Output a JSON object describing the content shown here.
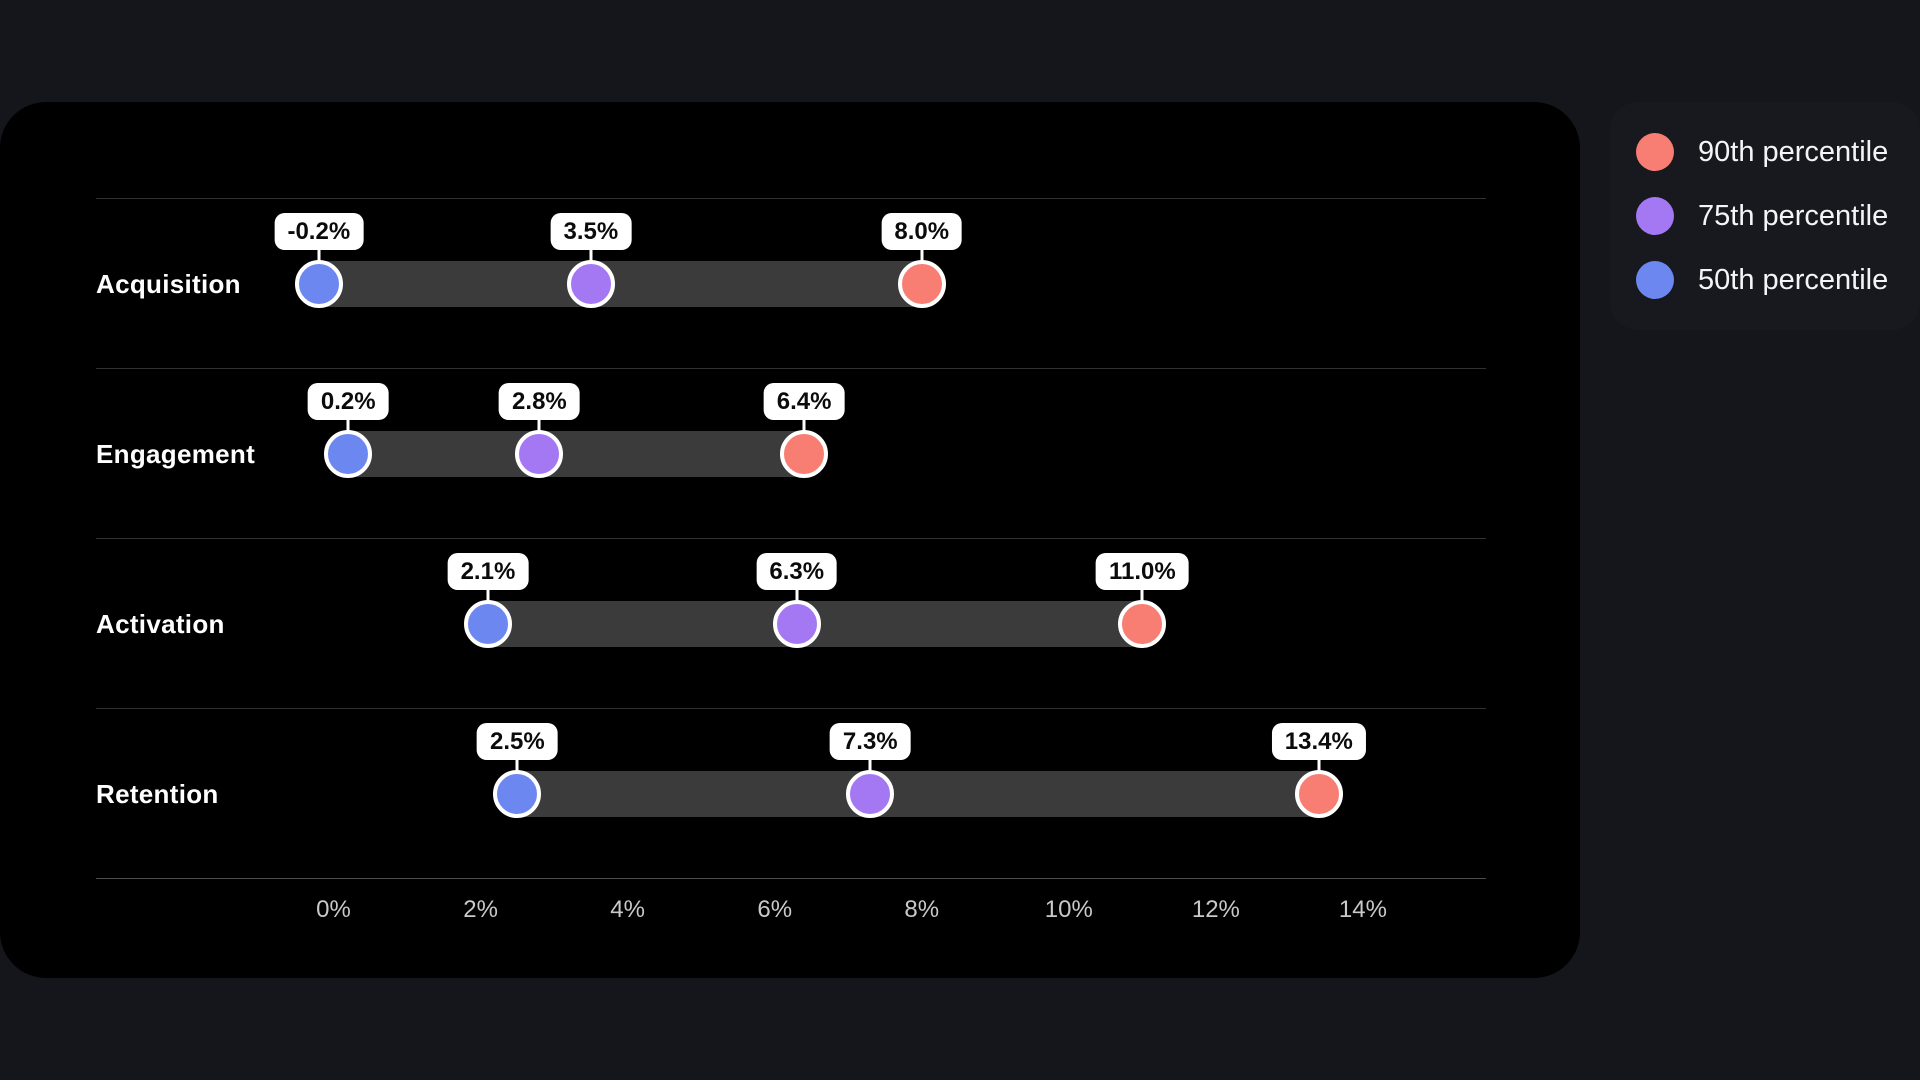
{
  "colors": {
    "page_bg": "#14161b",
    "panel_bg": "#000000",
    "legend_bg": "#17191e",
    "bar": "#3b3b3b",
    "row_line": "#2f3133",
    "axis_line": "#4b4d50",
    "tick_text": "#c9c9cb",
    "p50": "#6d87f0",
    "p75": "#a478f2",
    "p90": "#f87d72",
    "dot_ring": "#ffffff",
    "value_label_bg": "#ffffff",
    "value_label_text": "#0b0b0b"
  },
  "legend": {
    "items": [
      {
        "id": "p90",
        "label": "90th percentile",
        "color": "#f87d72"
      },
      {
        "id": "p75",
        "label": "75th percentile",
        "color": "#a478f2"
      },
      {
        "id": "p50",
        "label": "50th percentile",
        "color": "#6d87f0"
      }
    ]
  },
  "chart_data": {
    "type": "dumbbell-dot-range",
    "orientation": "horizontal",
    "categories": [
      "Acquisition",
      "Engagement",
      "Activation",
      "Retention"
    ],
    "series": [
      {
        "name": "50th percentile",
        "color": "#6d87f0",
        "values": [
          -0.2,
          0.2,
          2.1,
          2.5
        ]
      },
      {
        "name": "75th percentile",
        "color": "#a478f2",
        "values": [
          3.5,
          2.8,
          6.3,
          7.3
        ]
      },
      {
        "name": "90th percentile",
        "color": "#f87d72",
        "values": [
          8.0,
          6.4,
          11.0,
          13.4
        ]
      }
    ],
    "value_labels": [
      [
        "-0.2%",
        "3.5%",
        "8.0%"
      ],
      [
        "0.2%",
        "2.8%",
        "6.4%"
      ],
      [
        "2.1%",
        "6.3%",
        "11.0%"
      ],
      [
        "2.5%",
        "7.3%",
        "13.4%"
      ]
    ],
    "x_ticks": [
      {
        "value": 0,
        "label": "0%"
      },
      {
        "value": 2,
        "label": "2%"
      },
      {
        "value": 4,
        "label": "4%"
      },
      {
        "value": 6,
        "label": "6%"
      },
      {
        "value": 8,
        "label": "8%"
      },
      {
        "value": 10,
        "label": "10%"
      },
      {
        "value": 12,
        "label": "12%"
      },
      {
        "value": 14,
        "label": "14%"
      }
    ],
    "axis_range": [
      -1,
      16
    ],
    "grid": "row-separator-lines-only",
    "legend_position": "top-right",
    "xlabel": "",
    "ylabel": ""
  }
}
